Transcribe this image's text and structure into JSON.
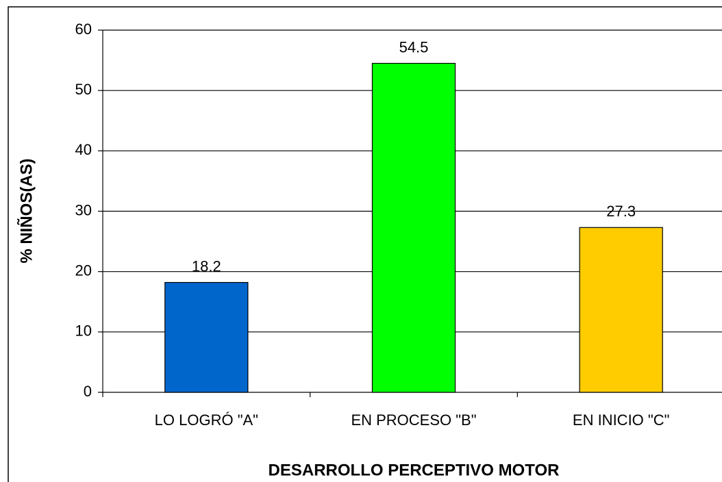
{
  "chart_data": {
    "type": "bar",
    "categories": [
      "LO LOGRÓ \"A\"",
      "EN PROCESO \"B\"",
      "EN INICIO \"C\""
    ],
    "values": [
      18.2,
      54.5,
      27.3
    ],
    "colors": [
      "#0066cc",
      "#00ff00",
      "#ffcc00"
    ],
    "x_label": "DESARROLLO PERCEPTIVO MOTOR",
    "y_label": "% NIÑOS(AS)",
    "ylim": [
      0,
      60
    ],
    "yticks": [
      0,
      10,
      20,
      30,
      40,
      50,
      60
    ],
    "grid": true
  }
}
